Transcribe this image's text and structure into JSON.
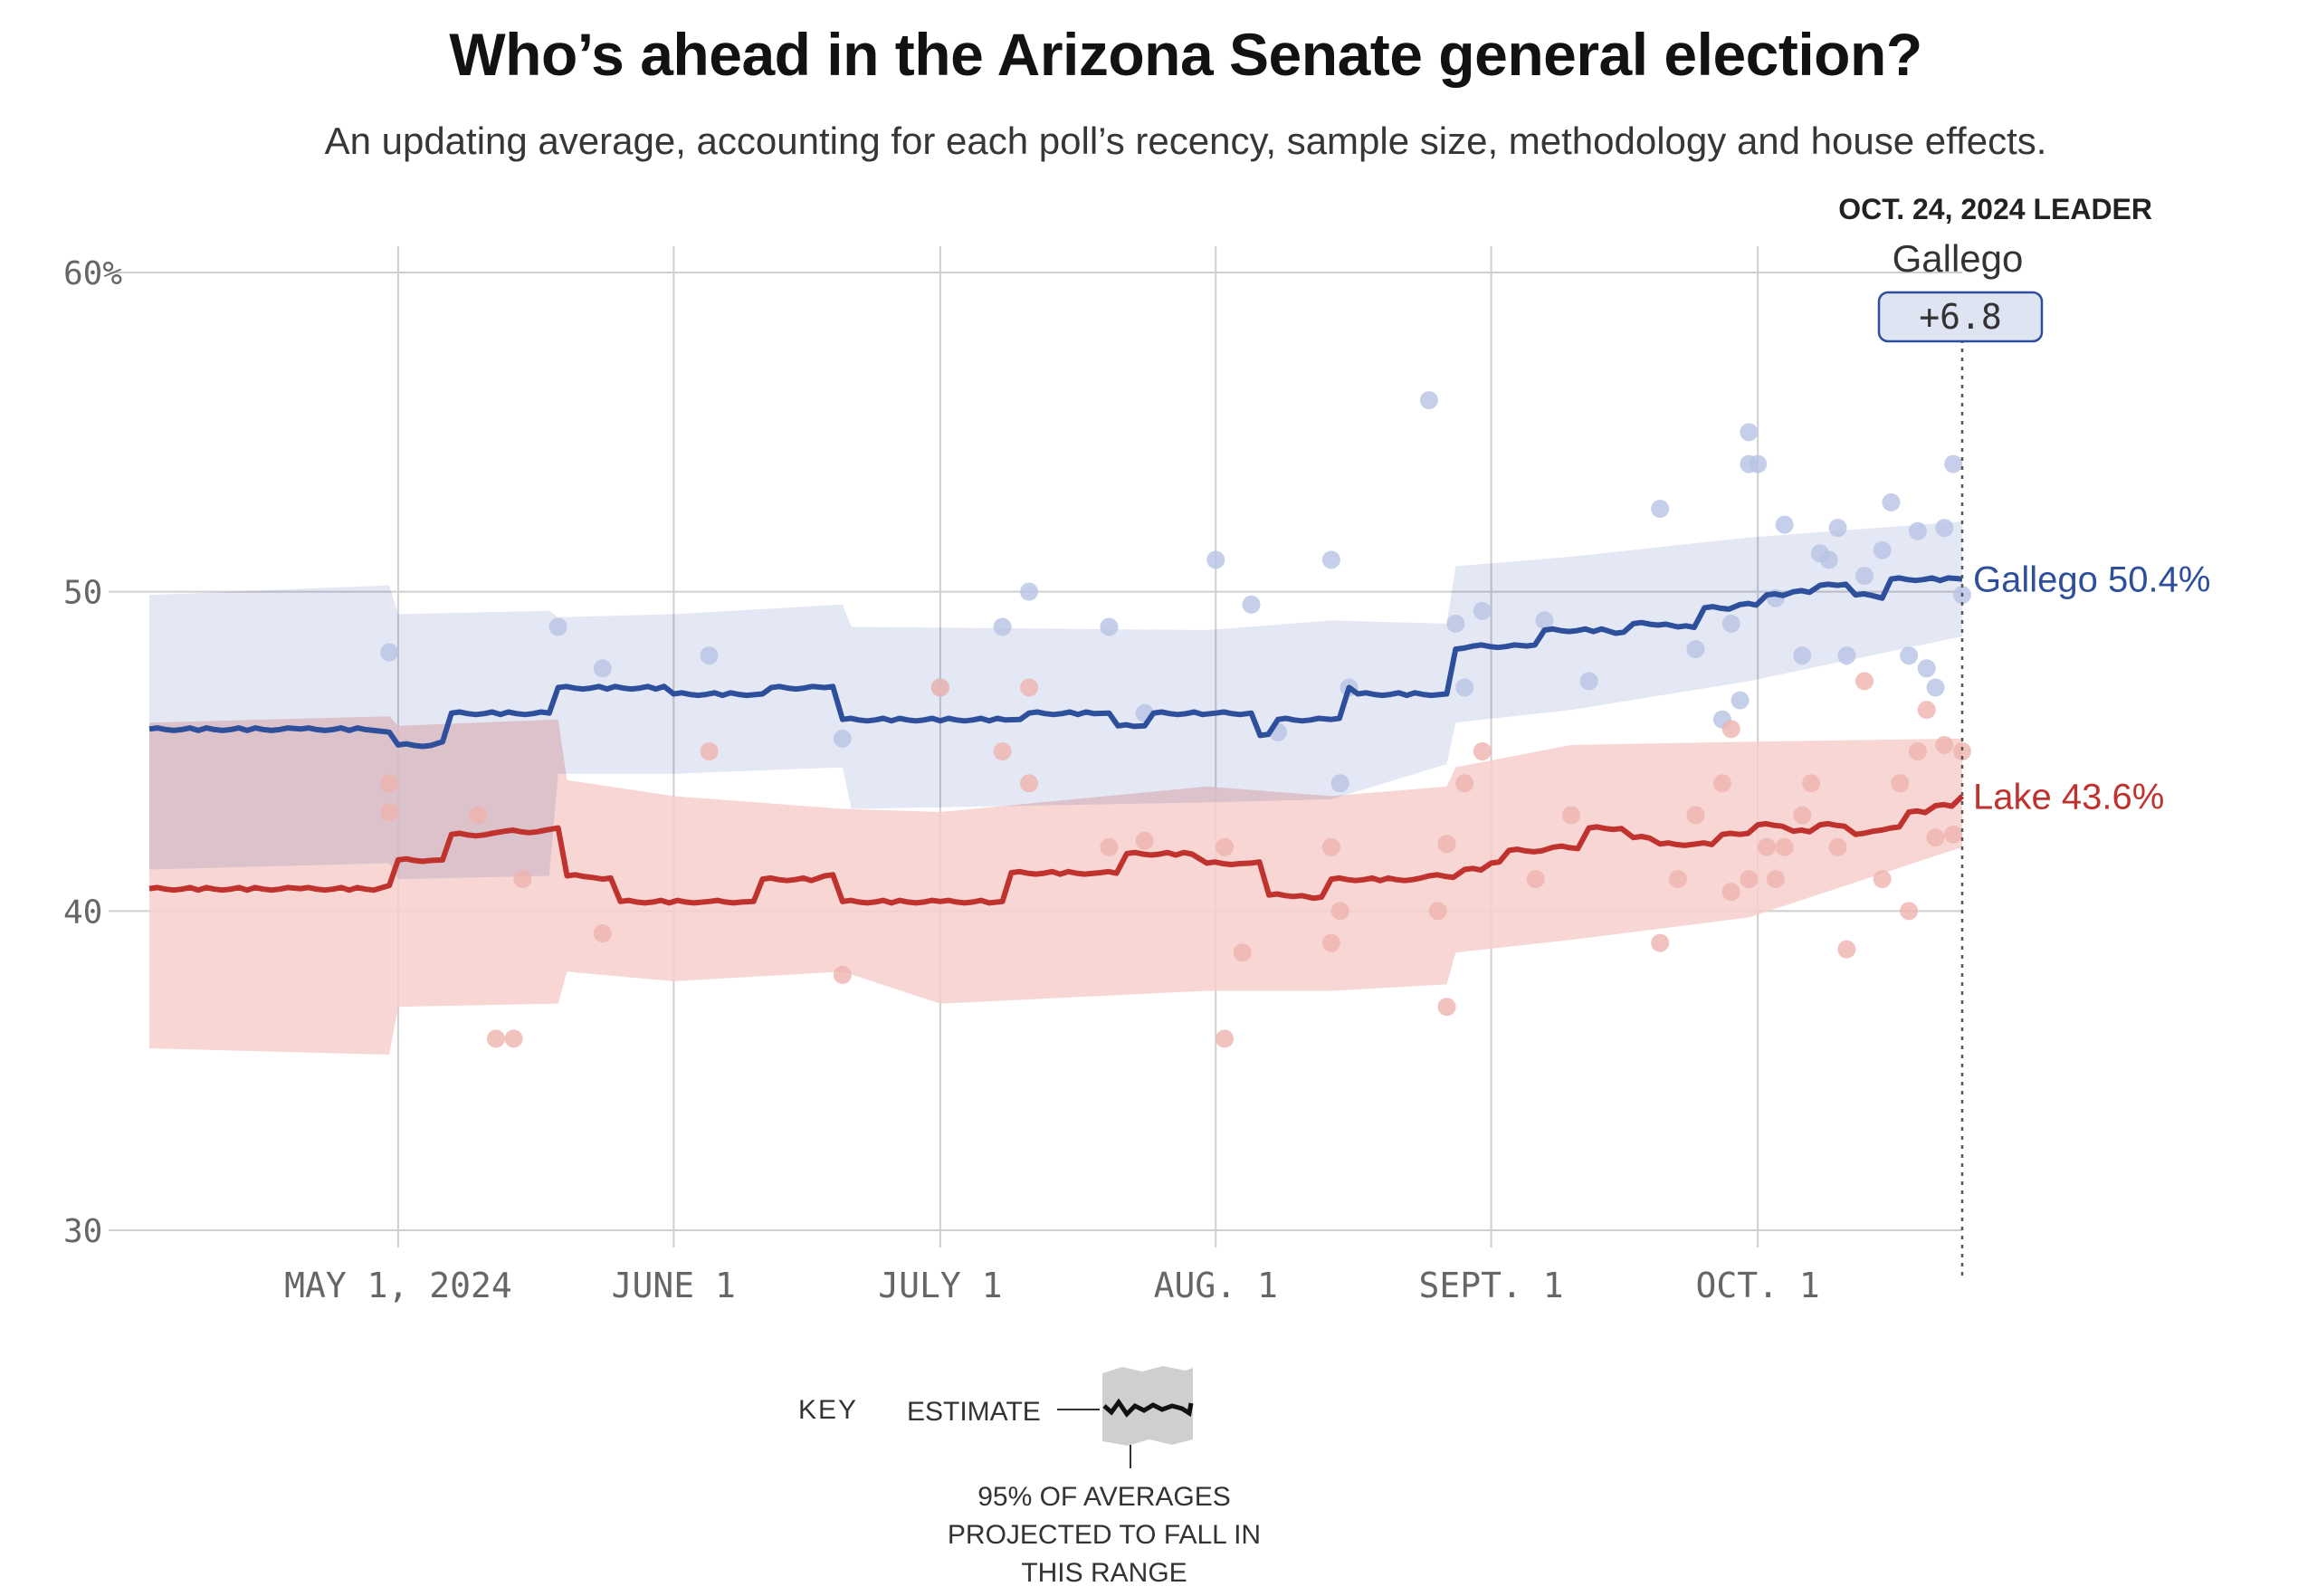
{
  "header": {
    "title": "Who’s ahead in the Arizona Senate general election?",
    "subtitle": "An updating average, accounting for each poll’s recency, sample size, methodology and house effects."
  },
  "leader_box": {
    "heading": "OCT. 24, 2024 LEADER",
    "name": "Gallego",
    "margin": "+6.8"
  },
  "key": {
    "label": "KEY",
    "estimate": "ESTIMATE",
    "range_line1": "95% OF AVERAGES",
    "range_line2": "PROJECTED TO FALL IN",
    "range_line3": "THIS RANGE"
  },
  "colors": {
    "gallego_line": "#2e4f9c",
    "gallego_band": "#dfe4f3",
    "gallego_dots": "#b8c3e3",
    "lake_line": "#c0322e",
    "lake_band": "#f6cfcc",
    "lake_dots": "#eeb3ae",
    "overlap_band": "#d6c0cc",
    "grid": "#cfcfcf"
  },
  "chart_data": {
    "type": "line",
    "title": "Who’s ahead in the Arizona Senate general election?",
    "x_axis": {
      "ticks": [
        {
          "date": "2024-05-01",
          "label": "MAY 1, 2024"
        },
        {
          "date": "2024-06-01",
          "label": "JUNE 1"
        },
        {
          "date": "2024-07-01",
          "label": "JULY 1"
        },
        {
          "date": "2024-08-01",
          "label": "AUG. 1"
        },
        {
          "date": "2024-09-01",
          "label": "SEPT. 1"
        },
        {
          "date": "2024-10-01",
          "label": "OCT. 1"
        }
      ],
      "range": [
        "2024-04-03",
        "2024-10-24"
      ]
    },
    "y_axis": {
      "range": [
        30,
        60
      ],
      "ticks": [
        {
          "value": 30,
          "label": "30"
        },
        {
          "value": 40,
          "label": "40"
        },
        {
          "value": 50,
          "label": "50"
        },
        {
          "value": 60,
          "label": "60%"
        }
      ]
    },
    "grid": true,
    "series": [
      {
        "name": "Gallego",
        "end_label": "Gallego 50.4%",
        "line": [
          [
            "2024-04-03",
            45.7
          ],
          [
            "2024-04-20",
            45.7
          ],
          [
            "2024-04-30",
            45.6
          ],
          [
            "2024-05-01",
            45.2
          ],
          [
            "2024-05-06",
            45.3
          ],
          [
            "2024-05-07",
            46.2
          ],
          [
            "2024-05-18",
            46.2
          ],
          [
            "2024-05-19",
            47.0
          ],
          [
            "2024-06-01",
            46.8
          ],
          [
            "2024-06-11",
            46.8
          ],
          [
            "2024-06-12",
            47.0
          ],
          [
            "2024-06-18",
            47.0
          ],
          [
            "2024-06-20",
            46.0
          ],
          [
            "2024-07-10",
            46.0
          ],
          [
            "2024-07-11",
            46.2
          ],
          [
            "2024-07-20",
            46.2
          ],
          [
            "2024-07-21",
            45.8
          ],
          [
            "2024-07-24",
            45.8
          ],
          [
            "2024-07-25",
            46.2
          ],
          [
            "2024-08-01",
            46.2
          ],
          [
            "2024-08-05",
            46.2
          ],
          [
            "2024-08-06",
            45.5
          ],
          [
            "2024-08-08",
            46.0
          ],
          [
            "2024-08-14",
            46.0
          ],
          [
            "2024-08-16",
            47.0
          ],
          [
            "2024-08-17",
            46.8
          ],
          [
            "2024-08-27",
            46.8
          ],
          [
            "2024-08-28",
            48.2
          ],
          [
            "2024-08-30",
            48.3
          ],
          [
            "2024-09-05",
            48.3
          ],
          [
            "2024-09-07",
            48.8
          ],
          [
            "2024-09-15",
            48.7
          ],
          [
            "2024-09-17",
            49.0
          ],
          [
            "2024-09-22",
            48.9
          ],
          [
            "2024-09-25",
            49.5
          ],
          [
            "2024-09-29",
            49.6
          ],
          [
            "2024-10-02",
            49.9
          ],
          [
            "2024-10-05",
            50.0
          ],
          [
            "2024-10-08",
            50.2
          ],
          [
            "2024-10-10",
            50.2
          ],
          [
            "2024-10-12",
            49.9
          ],
          [
            "2024-10-15",
            49.8
          ],
          [
            "2024-10-16",
            50.4
          ],
          [
            "2024-10-24",
            50.4
          ]
        ],
        "band": [
          [
            "2024-04-03",
            41.3,
            49.9
          ],
          [
            "2024-04-30",
            41.5,
            50.2
          ],
          [
            "2024-05-01",
            41.0,
            49.3
          ],
          [
            "2024-05-18",
            41.1,
            49.4
          ],
          [
            "2024-05-19",
            44.3,
            49.2
          ],
          [
            "2024-06-01",
            44.3,
            49.3
          ],
          [
            "2024-06-20",
            44.5,
            49.6
          ],
          [
            "2024-06-21",
            43.2,
            48.9
          ],
          [
            "2024-07-31",
            43.4,
            48.8
          ],
          [
            "2024-08-14",
            43.5,
            49.1
          ],
          [
            "2024-08-27",
            44.6,
            49.0
          ],
          [
            "2024-08-28",
            45.9,
            50.8
          ],
          [
            "2024-09-10",
            46.3,
            51.1
          ],
          [
            "2024-09-30",
            47.2,
            51.7
          ],
          [
            "2024-10-24",
            48.6,
            52.2
          ]
        ],
        "polls": [
          [
            "2024-04-30",
            48.1
          ],
          [
            "2024-05-19",
            48.9
          ],
          [
            "2024-05-24",
            47.6
          ],
          [
            "2024-06-05",
            48.0
          ],
          [
            "2024-06-20",
            45.4
          ],
          [
            "2024-07-01",
            47.0
          ],
          [
            "2024-07-08",
            48.9
          ],
          [
            "2024-07-11",
            50.0
          ],
          [
            "2024-07-20",
            48.9
          ],
          [
            "2024-07-24",
            46.2
          ],
          [
            "2024-08-01",
            51.0
          ],
          [
            "2024-08-05",
            49.6
          ],
          [
            "2024-08-08",
            45.6
          ],
          [
            "2024-08-14",
            51.0
          ],
          [
            "2024-08-15",
            44.0
          ],
          [
            "2024-08-16",
            47.0
          ],
          [
            "2024-08-25",
            56.0
          ],
          [
            "2024-08-28",
            49.0
          ],
          [
            "2024-08-29",
            47.0
          ],
          [
            "2024-08-31",
            49.4
          ],
          [
            "2024-09-07",
            49.1
          ],
          [
            "2024-09-12",
            47.2
          ],
          [
            "2024-09-20",
            52.6
          ],
          [
            "2024-09-24",
            48.2
          ],
          [
            "2024-09-27",
            46.0
          ],
          [
            "2024-09-28",
            49.0
          ],
          [
            "2024-09-29",
            46.6
          ],
          [
            "2024-09-30",
            55.0
          ],
          [
            "2024-09-30",
            54.0
          ],
          [
            "2024-10-01",
            54.0
          ],
          [
            "2024-10-03",
            49.8
          ],
          [
            "2024-10-04",
            52.1
          ],
          [
            "2024-10-06",
            48.0
          ],
          [
            "2024-10-08",
            51.2
          ],
          [
            "2024-10-09",
            51.0
          ],
          [
            "2024-10-10",
            52.0
          ],
          [
            "2024-10-11",
            48.0
          ],
          [
            "2024-10-13",
            50.5
          ],
          [
            "2024-10-15",
            51.3
          ],
          [
            "2024-10-16",
            52.8
          ],
          [
            "2024-10-18",
            48.0
          ],
          [
            "2024-10-19",
            51.9
          ],
          [
            "2024-10-20",
            47.6
          ],
          [
            "2024-10-21",
            47.0
          ],
          [
            "2024-10-22",
            52.0
          ],
          [
            "2024-10-23",
            54.0
          ],
          [
            "2024-10-24",
            49.9
          ]
        ]
      },
      {
        "name": "Lake",
        "end_label": "Lake 43.6%",
        "line": [
          [
            "2024-04-03",
            40.7
          ],
          [
            "2024-04-20",
            40.7
          ],
          [
            "2024-04-30",
            40.8
          ],
          [
            "2024-05-01",
            41.6
          ],
          [
            "2024-05-06",
            41.6
          ],
          [
            "2024-05-07",
            42.4
          ],
          [
            "2024-05-13",
            42.5
          ],
          [
            "2024-05-19",
            42.6
          ],
          [
            "2024-05-20",
            41.1
          ],
          [
            "2024-05-24",
            41.0
          ],
          [
            "2024-05-26",
            40.3
          ],
          [
            "2024-06-05",
            40.3
          ],
          [
            "2024-06-10",
            40.3
          ],
          [
            "2024-06-11",
            41.0
          ],
          [
            "2024-06-18",
            41.1
          ],
          [
            "2024-06-20",
            40.3
          ],
          [
            "2024-07-01",
            40.3
          ],
          [
            "2024-07-08",
            40.3
          ],
          [
            "2024-07-09",
            41.2
          ],
          [
            "2024-07-19",
            41.2
          ],
          [
            "2024-07-22",
            41.8
          ],
          [
            "2024-07-31",
            41.5
          ],
          [
            "2024-08-05",
            41.5
          ],
          [
            "2024-08-07",
            40.5
          ],
          [
            "2024-08-12",
            40.4
          ],
          [
            "2024-08-14",
            41.0
          ],
          [
            "2024-08-25",
            41.1
          ],
          [
            "2024-08-29",
            41.3
          ],
          [
            "2024-09-01",
            41.5
          ],
          [
            "2024-09-03",
            41.9
          ],
          [
            "2024-09-08",
            42.0
          ],
          [
            "2024-09-12",
            42.6
          ],
          [
            "2024-09-17",
            42.3
          ],
          [
            "2024-09-20",
            42.1
          ],
          [
            "2024-09-24",
            42.1
          ],
          [
            "2024-09-27",
            42.4
          ],
          [
            "2024-09-29",
            42.4
          ],
          [
            "2024-10-01",
            42.7
          ],
          [
            "2024-10-05",
            42.5
          ],
          [
            "2024-10-08",
            42.7
          ],
          [
            "2024-10-12",
            42.4
          ],
          [
            "2024-10-14",
            42.5
          ],
          [
            "2024-10-16",
            42.6
          ],
          [
            "2024-10-18",
            43.1
          ],
          [
            "2024-10-21",
            43.3
          ],
          [
            "2024-10-24",
            43.6
          ]
        ],
        "band": [
          [
            "2024-04-03",
            35.7,
            45.9
          ],
          [
            "2024-04-30",
            35.5,
            46.1
          ],
          [
            "2024-05-01",
            37.0,
            45.8
          ],
          [
            "2024-05-19",
            37.1,
            46.0
          ],
          [
            "2024-05-20",
            38.1,
            44.1
          ],
          [
            "2024-06-01",
            37.8,
            43.6
          ],
          [
            "2024-06-20",
            38.1,
            43.2
          ],
          [
            "2024-07-01",
            37.1,
            43.1
          ],
          [
            "2024-07-31",
            37.5,
            43.9
          ],
          [
            "2024-08-14",
            37.5,
            43.6
          ],
          [
            "2024-08-27",
            37.7,
            43.9
          ],
          [
            "2024-08-28",
            38.7,
            44.5
          ],
          [
            "2024-09-10",
            39.1,
            45.2
          ],
          [
            "2024-09-30",
            39.8,
            45.3
          ],
          [
            "2024-10-24",
            42.0,
            45.4
          ]
        ],
        "polls": [
          [
            "2024-04-30",
            44.0
          ],
          [
            "2024-04-30",
            43.1
          ],
          [
            "2024-05-10",
            43.0
          ],
          [
            "2024-05-15",
            41.0
          ],
          [
            "2024-05-12",
            36.0
          ],
          [
            "2024-05-14",
            36.0
          ],
          [
            "2024-05-24",
            39.3
          ],
          [
            "2024-06-05",
            45.0
          ],
          [
            "2024-06-20",
            38.0
          ],
          [
            "2024-07-01",
            47.0
          ],
          [
            "2024-07-08",
            45.0
          ],
          [
            "2024-07-11",
            47.0
          ],
          [
            "2024-07-11",
            44.0
          ],
          [
            "2024-07-20",
            42.0
          ],
          [
            "2024-07-24",
            42.2
          ],
          [
            "2024-08-02",
            42.0
          ],
          [
            "2024-08-02",
            36.0
          ],
          [
            "2024-08-04",
            38.7
          ],
          [
            "2024-08-14",
            42.0
          ],
          [
            "2024-08-14",
            39.0
          ],
          [
            "2024-08-15",
            40.0
          ],
          [
            "2024-08-26",
            40.0
          ],
          [
            "2024-08-27",
            37.0
          ],
          [
            "2024-08-27",
            42.1
          ],
          [
            "2024-08-29",
            44.0
          ],
          [
            "2024-08-31",
            45.0
          ],
          [
            "2024-09-06",
            41.0
          ],
          [
            "2024-09-10",
            43.0
          ],
          [
            "2024-09-20",
            39.0
          ],
          [
            "2024-09-22",
            41.0
          ],
          [
            "2024-09-24",
            43.0
          ],
          [
            "2024-09-27",
            44.0
          ],
          [
            "2024-09-28",
            40.6
          ],
          [
            "2024-09-28",
            45.7
          ],
          [
            "2024-09-30",
            41.0
          ],
          [
            "2024-10-02",
            42.0
          ],
          [
            "2024-10-03",
            41.0
          ],
          [
            "2024-10-04",
            42.0
          ],
          [
            "2024-10-06",
            43.0
          ],
          [
            "2024-10-07",
            44.0
          ],
          [
            "2024-10-10",
            42.0
          ],
          [
            "2024-10-11",
            38.8
          ],
          [
            "2024-10-13",
            47.2
          ],
          [
            "2024-10-15",
            41.0
          ],
          [
            "2024-10-17",
            44.0
          ],
          [
            "2024-10-18",
            40.0
          ],
          [
            "2024-10-19",
            45.0
          ],
          [
            "2024-10-20",
            46.3
          ],
          [
            "2024-10-21",
            42.3
          ],
          [
            "2024-10-22",
            45.2
          ],
          [
            "2024-10-23",
            42.4
          ],
          [
            "2024-10-24",
            45.0
          ]
        ]
      }
    ],
    "annotation": {
      "date": "2024-10-24",
      "type": "dotted-vertical-leader-line"
    }
  }
}
